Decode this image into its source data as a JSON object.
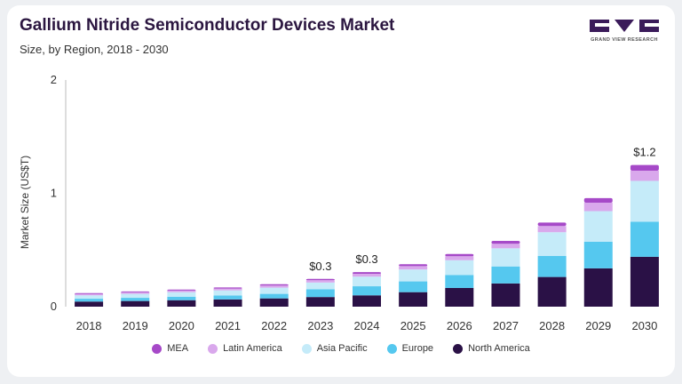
{
  "header": {
    "title": "Gallium Nitride Semiconductor Devices Market",
    "subtitle": "Size, by Region, 2018 - 2030",
    "logo_text": "GRAND VIEW RESEARCH"
  },
  "chart_data": {
    "type": "bar",
    "stacked": true,
    "title": "Gallium Nitride Semiconductor Devices Market",
    "subtitle": "Size, by Region, 2018 - 2030",
    "xlabel": "",
    "ylabel": "Market Size (US$T)",
    "ylim": [
      0,
      2
    ],
    "yticks": [
      "0",
      "1",
      "2"
    ],
    "grid": false,
    "legend_position": "bottom",
    "categories": [
      "2018",
      "2019",
      "2020",
      "2021",
      "2022",
      "2023",
      "2024",
      "2025",
      "2026",
      "2027",
      "2028",
      "2029",
      "2030"
    ],
    "series": [
      {
        "name": "North America",
        "color": "#2a1146",
        "values": [
          0.045,
          0.05,
          0.057,
          0.064,
          0.073,
          0.085,
          0.1,
          0.128,
          0.165,
          0.205,
          0.262,
          0.338,
          0.44
        ]
      },
      {
        "name": "Europe",
        "color": "#55c8ef",
        "values": [
          0.025,
          0.028,
          0.031,
          0.035,
          0.04,
          0.068,
          0.08,
          0.095,
          0.115,
          0.15,
          0.185,
          0.235,
          0.31
        ]
      },
      {
        "name": "Asia Pacific",
        "color": "#c5ebf9",
        "values": [
          0.03,
          0.035,
          0.04,
          0.045,
          0.055,
          0.06,
          0.085,
          0.105,
          0.13,
          0.16,
          0.21,
          0.27,
          0.36
        ]
      },
      {
        "name": "Latin America",
        "color": "#d9a8ec",
        "values": [
          0.012,
          0.013,
          0.014,
          0.016,
          0.018,
          0.02,
          0.025,
          0.03,
          0.035,
          0.04,
          0.055,
          0.075,
          0.09
        ]
      },
      {
        "name": "MEA",
        "color": "#a649c8",
        "values": [
          0.008,
          0.008,
          0.009,
          0.01,
          0.012,
          0.012,
          0.015,
          0.017,
          0.02,
          0.025,
          0.03,
          0.04,
          0.05
        ]
      }
    ],
    "annotations": [
      {
        "category": "2023",
        "text": "$0.3"
      },
      {
        "category": "2024",
        "text": "$0.3"
      },
      {
        "category": "2030",
        "text": "$1.2"
      }
    ],
    "legend_order": [
      "MEA",
      "Latin America",
      "Asia Pacific",
      "Europe",
      "North America"
    ]
  }
}
